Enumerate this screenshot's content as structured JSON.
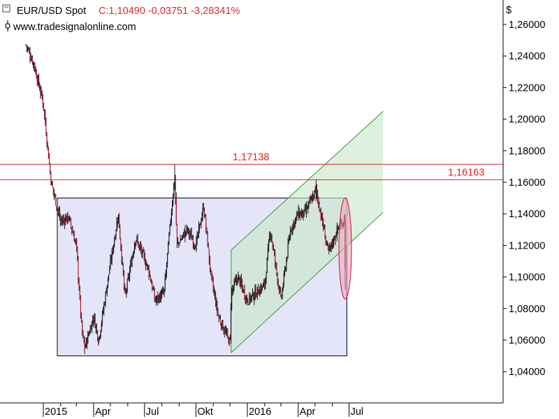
{
  "header": {
    "symbol": "EUR/USD Spot",
    "quote": "C:1,10490 -0,03751 -3,28341%",
    "source": "www.tradesignalonline.com",
    "currency_label": "$"
  },
  "colors": {
    "quote": "#e8262b",
    "candle_up": "#1a1a1a",
    "candle_down": "#c0102a",
    "range_box_fill": "#dcdcf8",
    "channel_fill": "#c8e6c8",
    "channel_line": "#2e9a2e",
    "resistance_line": "#e82020",
    "highlight_fill": "#f0a0b8",
    "highlight_stroke": "#c01040"
  },
  "chart_data": {
    "type": "candlestick",
    "title": "EUR/USD Spot",
    "x_ticks": [
      "2015",
      "Apr",
      "Jul",
      "Okt",
      "2016",
      "Apr",
      "Jul"
    ],
    "y_ticks": [
      "1,26000",
      "1,24000",
      "1,22000",
      "1,20000",
      "1,18000",
      "1,16000",
      "1,14000",
      "1,12000",
      "1,10000",
      "1,08000",
      "1,06000",
      "1,04000"
    ],
    "ylim": [
      1.03,
      1.268
    ],
    "series": [
      {
        "kind": "close",
        "points": [
          [
            "2014-12-01",
            1.247
          ],
          [
            "2014-12-15",
            1.235
          ],
          [
            "2015-01-01",
            1.21
          ],
          [
            "2015-01-15",
            1.16
          ],
          [
            "2015-02-01",
            1.135
          ],
          [
            "2015-02-15",
            1.138
          ],
          [
            "2015-03-01",
            1.12
          ],
          [
            "2015-03-11",
            1.065
          ],
          [
            "2015-03-16",
            1.055
          ],
          [
            "2015-04-01",
            1.075
          ],
          [
            "2015-04-10",
            1.06
          ],
          [
            "2015-04-25",
            1.095
          ],
          [
            "2015-05-15",
            1.14
          ],
          [
            "2015-05-27",
            1.087
          ],
          [
            "2015-06-15",
            1.125
          ],
          [
            "2015-07-08",
            1.105
          ],
          [
            "2015-07-20",
            1.085
          ],
          [
            "2015-08-05",
            1.09
          ],
          [
            "2015-08-24",
            1.165
          ],
          [
            "2015-08-28",
            1.12
          ],
          [
            "2015-09-15",
            1.13
          ],
          [
            "2015-10-01",
            1.12
          ],
          [
            "2015-10-15",
            1.145
          ],
          [
            "2015-10-28",
            1.1
          ],
          [
            "2015-11-10",
            1.075
          ],
          [
            "2015-12-01",
            1.058
          ],
          [
            "2015-12-03",
            1.09
          ],
          [
            "2015-12-15",
            1.1
          ],
          [
            "2016-01-01",
            1.085
          ],
          [
            "2016-02-01",
            1.095
          ],
          [
            "2016-02-11",
            1.13
          ],
          [
            "2016-03-01",
            1.085
          ],
          [
            "2016-03-18",
            1.13
          ],
          [
            "2016-04-01",
            1.14
          ],
          [
            "2016-04-12",
            1.14
          ],
          [
            "2016-05-03",
            1.155
          ],
          [
            "2016-05-25",
            1.115
          ],
          [
            "2016-06-10",
            1.13
          ],
          [
            "2016-06-23",
            1.137
          ],
          [
            "2016-06-24",
            1.105
          ]
        ]
      }
    ],
    "annotations": [
      {
        "type": "horizontal_line",
        "value": 1.17138,
        "label": "1,17138"
      },
      {
        "type": "horizontal_line",
        "value": 1.16163,
        "label": "1,16163"
      },
      {
        "type": "range_box",
        "x": [
          "2015-01-26",
          "2016-06-27"
        ],
        "y": [
          1.05,
          1.15
        ]
      },
      {
        "type": "ascending_channel",
        "x": [
          "2015-12-03",
          "2016-08-31"
        ],
        "lower": [
          1.052,
          1.141
        ],
        "upper": [
          1.117,
          1.205
        ]
      },
      {
        "type": "ellipse_highlight",
        "x": "2016-06-24",
        "y": [
          1.086,
          1.15
        ]
      }
    ]
  }
}
